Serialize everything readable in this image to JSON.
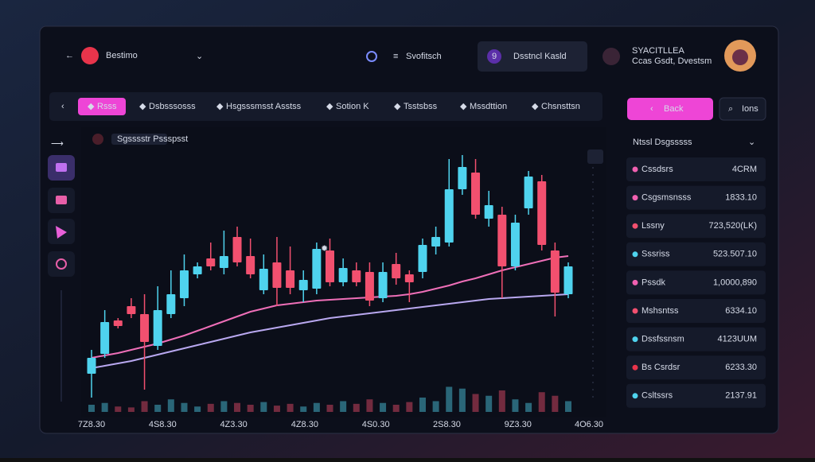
{
  "header": {
    "app_name": "Bestimo",
    "menu": "Svofitsch",
    "button": "Dsstncl Kasld",
    "button_badge": "9",
    "user_name": "SYACITLLEA",
    "user_sub": "Ccas Gsdt, Dvestsm"
  },
  "toolbar": {
    "items": [
      "Rsss",
      "Dsbsssosss",
      "Hsgsssmsst Asstss",
      "Sotion K",
      "Tsstsbss",
      "Mssdttion",
      "Chsnsttsn"
    ],
    "back_button": "Back",
    "search": "Ions"
  },
  "panel": {
    "title": "Ntssl Dsgsssss",
    "rows": [
      [
        "Cssdsrs",
        "4CRM"
      ],
      [
        "Csgsmsnsss",
        "1833.10"
      ],
      [
        "Lssny",
        "723,520(LK)"
      ],
      [
        "Sssriss",
        "523.507.10"
      ],
      [
        "Pssdk",
        "1,0000,890"
      ],
      [
        "Mshsntss",
        "6334.10"
      ],
      [
        "Dssfssnsm",
        "4123UUM"
      ],
      [
        "Bs Csrdsr",
        "6233.30"
      ],
      [
        "Csltssrs",
        "2137.91"
      ]
    ]
  },
  "chart_data": {
    "type": "candlestick",
    "title": "Sgsssstr Pssspsst",
    "x_labels": [
      "7Z8.30",
      "4S8.30",
      "4Z3.30",
      "4Z8.30",
      "4S0.30",
      "2S8.30",
      "9Z3.30",
      "4O6.30"
    ],
    "open": [
      30,
      55,
      97,
      115,
      105,
      65,
      105,
      125,
      155,
      175,
      163,
      202,
      178,
      135,
      170,
      160,
      135,
      137,
      185,
      145,
      160,
      158,
      125,
      168,
      155,
      158,
      190,
      195,
      262,
      283,
      225,
      230,
      165,
      238,
      272,
      185,
      130
    ],
    "high": [
      60,
      110,
      100,
      125,
      130,
      140,
      160,
      180,
      170,
      195,
      210,
      215,
      200,
      180,
      202,
      190,
      160,
      195,
      200,
      175,
      170,
      170,
      170,
      182,
      160,
      200,
      215,
      300,
      305,
      300,
      260,
      240,
      230,
      285,
      280,
      195,
      170
    ],
    "low": [
      0,
      50,
      87,
      100,
      10,
      60,
      100,
      115,
      150,
      160,
      155,
      165,
      150,
      130,
      115,
      130,
      120,
      130,
      140,
      140,
      140,
      115,
      120,
      142,
      120,
      150,
      180,
      190,
      255,
      225,
      215,
      125,
      160,
      230,
      185,
      102,
      125
    ],
    "close": [
      50,
      95,
      90,
      105,
      70,
      110,
      130,
      160,
      165,
      165,
      178,
      170,
      155,
      162,
      138,
      138,
      148,
      187,
      145,
      163,
      145,
      122,
      158,
      150,
      145,
      192,
      202,
      262,
      290,
      230,
      242,
      165,
      220,
      278,
      192,
      132,
      165
    ],
    "up_color": "#4fd3ee",
    "down_color": "#f2506f",
    "lines": [
      {
        "color": "#ef6fb8",
        "values": [
          50,
          53,
          56,
          60,
          64,
          68,
          73,
          78,
          84,
          90,
          96,
          102,
          108,
          112,
          116,
          118,
          120,
          122,
          123,
          124,
          125,
          126,
          127,
          128,
          130,
          133,
          137,
          141,
          146,
          150,
          155,
          160,
          164,
          168,
          172,
          176,
          178
        ]
      },
      {
        "color": "#b9a8f0",
        "values": [
          37,
          40,
          43,
          46,
          50,
          54,
          58,
          62,
          66,
          70,
          74,
          78,
          82,
          85,
          88,
          91,
          94,
          97,
          100,
          102,
          104,
          106,
          108,
          110,
          112,
          114,
          116,
          118,
          120,
          122,
          124,
          125,
          126,
          127,
          128,
          129,
          130
        ]
      }
    ],
    "volume": [
      8,
      10,
      6,
      5,
      12,
      8,
      14,
      10,
      6,
      9,
      12,
      10,
      8,
      11,
      7,
      9,
      6,
      10,
      8,
      12,
      9,
      14,
      10,
      8,
      11,
      16,
      12,
      28,
      26,
      20,
      18,
      24,
      14,
      10,
      22,
      18,
      12
    ],
    "ylim": [
      0,
      320
    ],
    "y2lim": [
      0,
      300
    ]
  }
}
